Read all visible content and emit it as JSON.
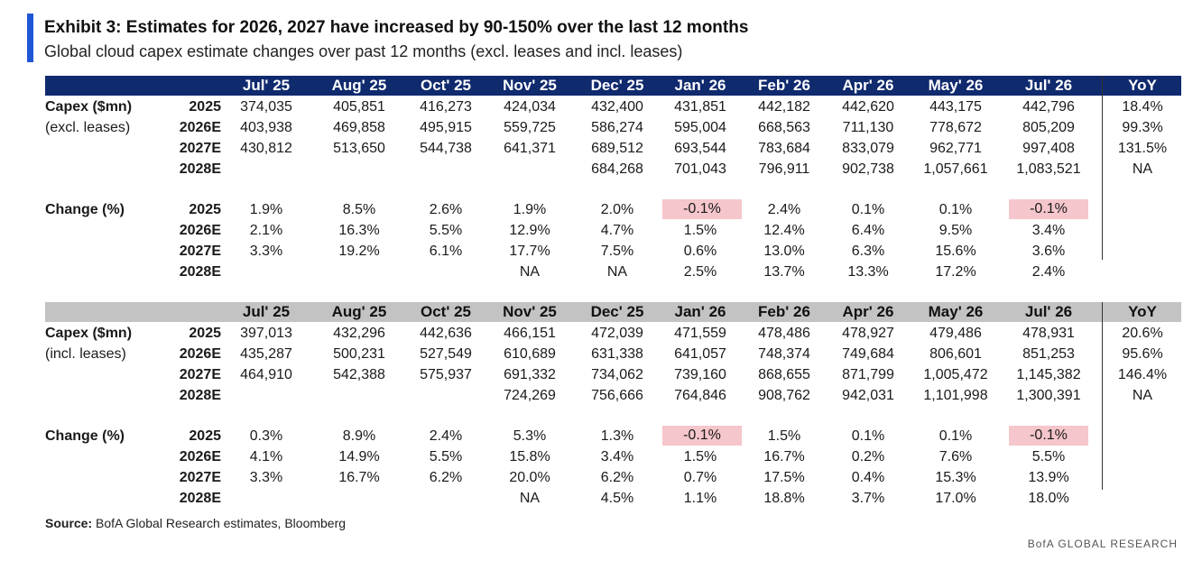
{
  "title": "Exhibit 3: Estimates for 2026, 2027 have increased by 90-150% over the last 12 months",
  "subtitle": "Global cloud capex estimate changes over past 12 months (excl. leases and incl. leases)",
  "columns": [
    "Jul' 25",
    "Aug' 25",
    "Oct' 25",
    "Nov' 25",
    "Dec' 25",
    "Jan' 26",
    "Feb' 26",
    "Apr' 26",
    "May' 26",
    "Jul' 26"
  ],
  "yoy_label": "YoY",
  "accent_color": "#1f56d6",
  "header_colors": {
    "excl": "#102a6e",
    "incl": "#c3c3c3"
  },
  "negative_highlight": "#f5c6cb",
  "sections": [
    {
      "capex_label": "Capex ($mn)",
      "capex_sublabel": "(excl. leases)",
      "capex_rows": [
        {
          "year": "2025",
          "values": [
            "374,035",
            "405,851",
            "416,273",
            "424,034",
            "432,400",
            "431,851",
            "442,182",
            "442,620",
            "443,175",
            "442,796"
          ],
          "yoy": "18.4%"
        },
        {
          "year": "2026E",
          "values": [
            "403,938",
            "469,858",
            "495,915",
            "559,725",
            "586,274",
            "595,004",
            "668,563",
            "711,130",
            "778,672",
            "805,209"
          ],
          "yoy": "99.3%"
        },
        {
          "year": "2027E",
          "values": [
            "430,812",
            "513,650",
            "544,738",
            "641,371",
            "689,512",
            "693,544",
            "783,684",
            "833,079",
            "962,771",
            "997,408"
          ],
          "yoy": "131.5%"
        },
        {
          "year": "2028E",
          "values": [
            "",
            "",
            "",
            "",
            "684,268",
            "701,043",
            "796,911",
            "902,738",
            "1,057,661",
            "1,083,521"
          ],
          "yoy": "NA"
        }
      ],
      "change_label": "Change (%)",
      "change_rows": [
        {
          "year": "2025",
          "values": [
            "1.9%",
            "8.5%",
            "2.6%",
            "1.9%",
            "2.0%",
            "-0.1%",
            "2.4%",
            "0.1%",
            "0.1%",
            "-0.1%"
          ]
        },
        {
          "year": "2026E",
          "values": [
            "2.1%",
            "16.3%",
            "5.5%",
            "12.9%",
            "4.7%",
            "1.5%",
            "12.4%",
            "6.4%",
            "9.5%",
            "3.4%"
          ]
        },
        {
          "year": "2027E",
          "values": [
            "3.3%",
            "19.2%",
            "6.1%",
            "17.7%",
            "7.5%",
            "0.6%",
            "13.0%",
            "6.3%",
            "15.6%",
            "3.6%"
          ]
        },
        {
          "year": "2028E",
          "values": [
            "",
            "",
            "",
            "NA",
            "NA",
            "2.5%",
            "13.7%",
            "13.3%",
            "17.2%",
            "2.4%"
          ]
        }
      ]
    },
    {
      "capex_label": "Capex ($mn)",
      "capex_sublabel": "(incl. leases)",
      "capex_rows": [
        {
          "year": "2025",
          "values": [
            "397,013",
            "432,296",
            "442,636",
            "466,151",
            "472,039",
            "471,559",
            "478,486",
            "478,927",
            "479,486",
            "478,931"
          ],
          "yoy": "20.6%"
        },
        {
          "year": "2026E",
          "values": [
            "435,287",
            "500,231",
            "527,549",
            "610,689",
            "631,338",
            "641,057",
            "748,374",
            "749,684",
            "806,601",
            "851,253"
          ],
          "yoy": "95.6%"
        },
        {
          "year": "2027E",
          "values": [
            "464,910",
            "542,388",
            "575,937",
            "691,332",
            "734,062",
            "739,160",
            "868,655",
            "871,799",
            "1,005,472",
            "1,145,382"
          ],
          "yoy": "146.4%"
        },
        {
          "year": "2028E",
          "values": [
            "",
            "",
            "",
            "724,269",
            "756,666",
            "764,846",
            "908,762",
            "942,031",
            "1,101,998",
            "1,300,391"
          ],
          "yoy": "NA"
        }
      ],
      "change_label": "Change (%)",
      "change_rows": [
        {
          "year": "2025",
          "values": [
            "0.3%",
            "8.9%",
            "2.4%",
            "5.3%",
            "1.3%",
            "-0.1%",
            "1.5%",
            "0.1%",
            "0.1%",
            "-0.1%"
          ]
        },
        {
          "year": "2026E",
          "values": [
            "4.1%",
            "14.9%",
            "5.5%",
            "15.8%",
            "3.4%",
            "1.5%",
            "16.7%",
            "0.2%",
            "7.6%",
            "5.5%"
          ]
        },
        {
          "year": "2027E",
          "values": [
            "3.3%",
            "16.7%",
            "6.2%",
            "20.0%",
            "6.2%",
            "0.7%",
            "17.5%",
            "0.4%",
            "15.3%",
            "13.9%"
          ]
        },
        {
          "year": "2028E",
          "values": [
            "",
            "",
            "",
            "NA",
            "4.5%",
            "1.1%",
            "18.8%",
            "3.7%",
            "17.0%",
            "18.0%"
          ]
        }
      ]
    }
  ],
  "source": {
    "label": "Source:",
    "text": " BofA Global Research estimates, Bloomberg"
  },
  "watermark": "BofA GLOBAL RESEARCH"
}
